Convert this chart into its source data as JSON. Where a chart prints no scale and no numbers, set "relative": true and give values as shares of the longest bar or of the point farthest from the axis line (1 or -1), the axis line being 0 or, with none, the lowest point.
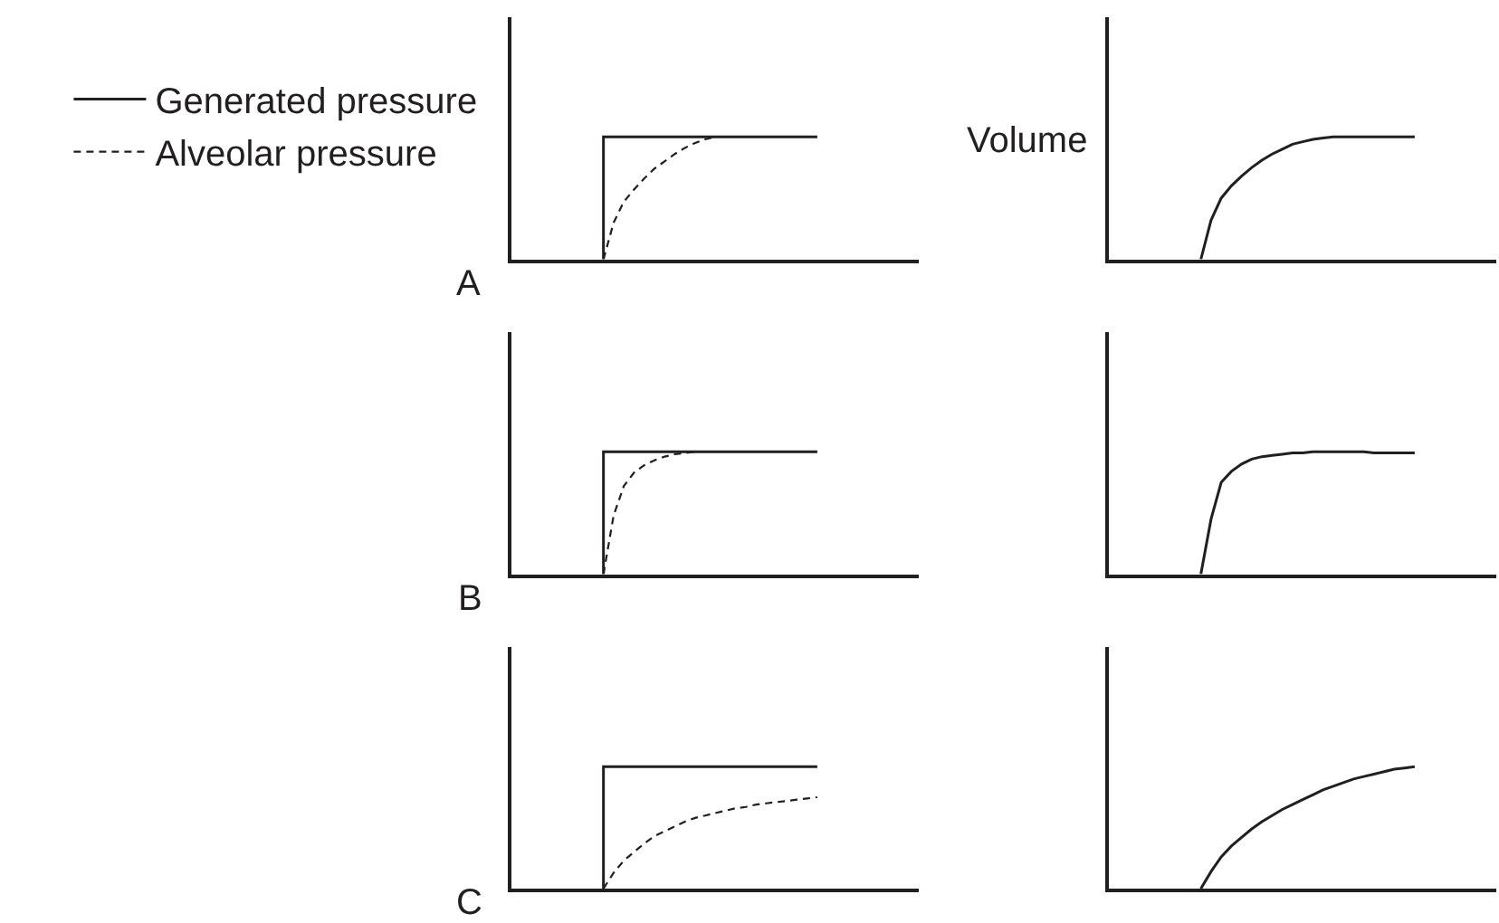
{
  "chart_data": [
    {
      "type": "line",
      "title": "A",
      "relative": true,
      "legend": "left",
      "categories": [
        null,
        null,
        null,
        null,
        null,
        null,
        null,
        null,
        null,
        null,
        null,
        null,
        null,
        null,
        null,
        null,
        null,
        null,
        null,
        null,
        null,
        null,
        null,
        null,
        null,
        null,
        null,
        null,
        null,
        null,
        null,
        null,
        null,
        null,
        null,
        null,
        null,
        null,
        null,
        null,
        null
      ],
      "series": [
        {
          "name": "Generated pressure",
          "type": "step",
          "color": "#231f20",
          "line_style": "solid",
          "values": [
            null,
            null,
            null,
            null,
            null,
            null,
            null,
            null,
            null,
            0,
            1,
            1,
            1,
            1,
            1,
            1,
            1,
            1,
            1,
            1,
            1,
            1,
            1,
            1,
            1,
            1,
            1,
            1,
            1,
            1,
            1,
            null,
            null,
            null,
            null,
            null,
            null,
            null,
            null,
            null,
            null
          ]
        },
        {
          "name": "Alveolar pressure",
          "type": "line",
          "color": "#231f20",
          "line_style": "dashed",
          "values": [
            null,
            null,
            null,
            null,
            null,
            null,
            null,
            null,
            null,
            0,
            0.3,
            0.47,
            0.57,
            0.66,
            0.74,
            0.8,
            0.86,
            0.91,
            0.95,
            0.98,
            1,
            null,
            null,
            null,
            null,
            null,
            null,
            null,
            null,
            null,
            null,
            null,
            null,
            null,
            null,
            null,
            null,
            null,
            null,
            null,
            null
          ]
        }
      ]
    },
    {
      "type": "line",
      "ylabel": "Volume",
      "relative": true,
      "color": "#231f20",
      "categories": [
        null,
        null,
        null,
        null,
        null,
        null,
        null,
        null,
        null,
        null,
        null,
        null,
        null,
        null,
        null,
        null,
        null,
        null,
        null,
        null,
        null,
        null,
        null,
        null,
        null,
        null,
        null,
        null,
        null,
        null,
        null,
        null,
        null,
        null,
        null,
        null,
        null,
        null,
        null
      ],
      "values": [
        null,
        null,
        null,
        null,
        null,
        null,
        null,
        null,
        null,
        0,
        0.32,
        0.5,
        0.6,
        0.68,
        0.75,
        0.81,
        0.86,
        0.9,
        0.94,
        0.96,
        0.98,
        0.99,
        1,
        1,
        1,
        1,
        1,
        1,
        1,
        1,
        1,
        null,
        null,
        null,
        null,
        null,
        null,
        null,
        null
      ]
    },
    {
      "type": "line",
      "title": "B",
      "relative": true,
      "categories": [
        null,
        null,
        null,
        null,
        null,
        null,
        null,
        null,
        null,
        null,
        null,
        null,
        null,
        null,
        null,
        null,
        null,
        null,
        null,
        null,
        null,
        null,
        null,
        null,
        null,
        null,
        null,
        null,
        null,
        null,
        null,
        null,
        null,
        null,
        null,
        null,
        null,
        null,
        null,
        null,
        null
      ],
      "series": [
        {
          "type": "step",
          "color": "#231f20",
          "line_style": "solid",
          "values": [
            null,
            null,
            null,
            null,
            null,
            null,
            null,
            null,
            null,
            0,
            1,
            1,
            1,
            1,
            1,
            1,
            1,
            1,
            1,
            1,
            1,
            1,
            1,
            1,
            1,
            1,
            1,
            1,
            1,
            1,
            1,
            null,
            null,
            null,
            null,
            null,
            null,
            null,
            null,
            null,
            null
          ]
        },
        {
          "type": "line",
          "color": "#231f20",
          "line_style": "dashed",
          "values": [
            null,
            null,
            null,
            null,
            null,
            null,
            null,
            null,
            null,
            0,
            0.48,
            0.72,
            0.83,
            0.89,
            0.93,
            0.96,
            0.98,
            0.99,
            1,
            null,
            null,
            null,
            null,
            null,
            null,
            null,
            null,
            null,
            null,
            null,
            null,
            null,
            null,
            null,
            null,
            null,
            null,
            null,
            null,
            null,
            null
          ]
        }
      ]
    },
    {
      "type": "line",
      "relative": true,
      "color": "#231f20",
      "categories": [
        null,
        null,
        null,
        null,
        null,
        null,
        null,
        null,
        null,
        null,
        null,
        null,
        null,
        null,
        null,
        null,
        null,
        null,
        null,
        null,
        null,
        null,
        null,
        null,
        null,
        null,
        null,
        null,
        null,
        null,
        null,
        null,
        null,
        null,
        null,
        null,
        null,
        null,
        null
      ],
      "values": [
        null,
        null,
        null,
        null,
        null,
        null,
        null,
        null,
        null,
        0,
        0.45,
        0.75,
        0.84,
        0.9,
        0.94,
        0.96,
        0.97,
        0.98,
        0.99,
        0.99,
        1,
        1,
        1,
        1,
        1,
        1,
        0.99,
        0.99,
        0.99,
        0.99,
        0.99,
        null,
        null,
        null,
        null,
        null,
        null,
        null,
        null
      ]
    },
    {
      "type": "line",
      "title": "C",
      "relative": true,
      "categories": [
        null,
        null,
        null,
        null,
        null,
        null,
        null,
        null,
        null,
        null,
        null,
        null,
        null,
        null,
        null,
        null,
        null,
        null,
        null,
        null,
        null,
        null,
        null,
        null,
        null,
        null,
        null,
        null,
        null,
        null,
        null,
        null,
        null,
        null,
        null,
        null,
        null,
        null,
        null,
        null,
        null
      ],
      "series": [
        {
          "type": "step",
          "color": "#231f20",
          "line_style": "solid",
          "values": [
            null,
            null,
            null,
            null,
            null,
            null,
            null,
            null,
            null,
            0,
            1,
            1,
            1,
            1,
            1,
            1,
            1,
            1,
            1,
            1,
            1,
            1,
            1,
            1,
            1,
            1,
            1,
            1,
            1,
            1,
            1,
            null,
            null,
            null,
            null,
            null,
            null,
            null,
            null,
            null,
            null
          ]
        },
        {
          "type": "line",
          "color": "#231f20",
          "line_style": "dashed",
          "values": [
            null,
            null,
            null,
            null,
            null,
            null,
            null,
            null,
            null,
            0,
            0.13,
            0.23,
            0.3,
            0.37,
            0.43,
            0.47,
            0.51,
            0.55,
            0.58,
            0.6,
            0.62,
            0.64,
            0.66,
            0.67,
            0.69,
            0.7,
            0.71,
            0.72,
            0.73,
            0.74,
            0.75,
            null,
            null,
            null,
            null,
            null,
            null,
            null,
            null,
            null,
            null
          ]
        }
      ]
    },
    {
      "type": "line",
      "relative": true,
      "color": "#231f20",
      "categories": [
        null,
        null,
        null,
        null,
        null,
        null,
        null,
        null,
        null,
        null,
        null,
        null,
        null,
        null,
        null,
        null,
        null,
        null,
        null,
        null,
        null,
        null,
        null,
        null,
        null,
        null,
        null,
        null,
        null,
        null,
        null,
        null,
        null,
        null,
        null,
        null,
        null,
        null,
        null
      ],
      "values": [
        null,
        null,
        null,
        null,
        null,
        null,
        null,
        null,
        null,
        0,
        0.14,
        0.26,
        0.35,
        0.42,
        0.49,
        0.55,
        0.6,
        0.65,
        0.69,
        0.73,
        0.77,
        0.81,
        0.84,
        0.87,
        0.9,
        0.92,
        0.94,
        0.96,
        0.98,
        0.99,
        1,
        null,
        null,
        null,
        null,
        null,
        null,
        null,
        null
      ]
    }
  ]
}
